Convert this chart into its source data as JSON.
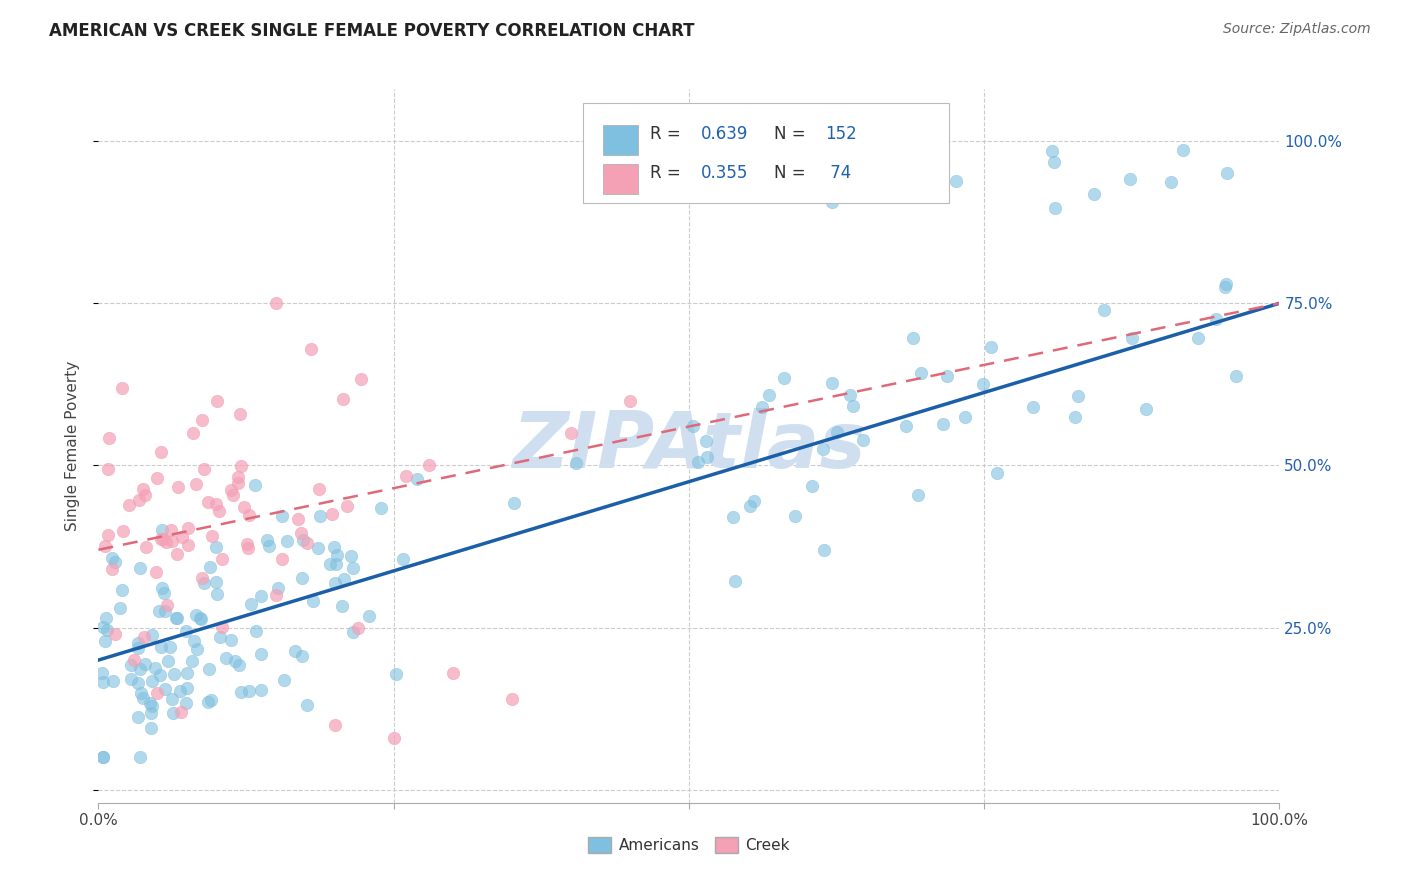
{
  "title": "AMERICAN VS CREEK SINGLE FEMALE POVERTY CORRELATION CHART",
  "source": "Source: ZipAtlas.com",
  "ylabel": "Single Female Poverty",
  "watermark": "ZIPAtlas",
  "blue_color": "#7fbfdf",
  "pink_color": "#f4a0b5",
  "blue_line_color": "#1a5fa8",
  "pink_line_color": "#e06878",
  "watermark_color": "#d0dff0",
  "background_color": "#ffffff",
  "grid_color": "#cccccc",
  "right_label_color": "#2060b0",
  "title_color": "#222222",
  "source_color": "#666666"
}
